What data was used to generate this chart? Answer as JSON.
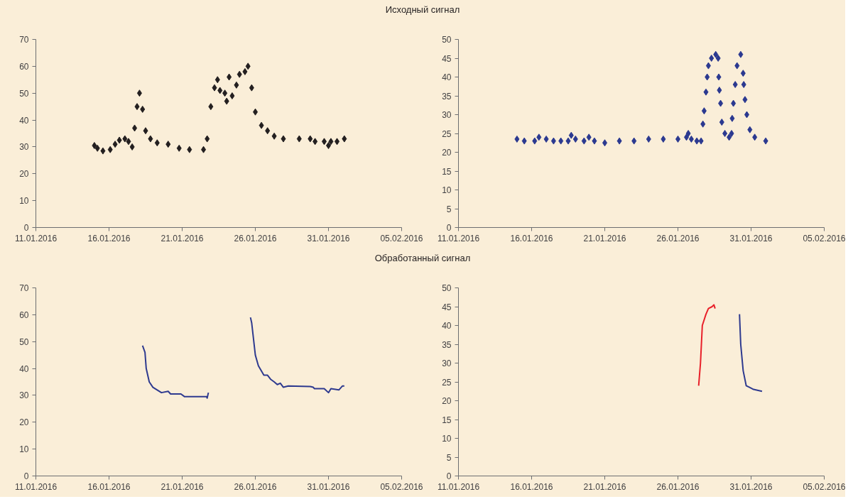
{
  "chart_data": [
    {
      "type": "scatter",
      "title": "Исходный сигнал",
      "marker": "diamond",
      "xlim": [
        "2016-01-11",
        "2016-02-05"
      ],
      "ylim": [
        0,
        70
      ],
      "yticks": [
        0,
        10,
        20,
        30,
        40,
        50,
        60,
        70
      ],
      "xticks": [
        {
          "value": "2016-01-11",
          "label": "11.01.2016"
        },
        {
          "value": "2016-01-16",
          "label": "16.01.2016"
        },
        {
          "value": "2016-01-21",
          "label": "21.01.2016"
        },
        {
          "value": "2016-01-26",
          "label": "26.01.2016"
        },
        {
          "value": "2016-01-31",
          "label": "31.01.2016"
        },
        {
          "value": "2016-02-05",
          "label": "05.02.2016"
        }
      ],
      "series": [
        {
          "color": "#231f20",
          "x": [
            "2016-01-15T00:00",
            "2016-01-15T05:00",
            "2016-01-15T14:00",
            "2016-01-16T02:00",
            "2016-01-16T10:00",
            "2016-01-16T17:00",
            "2016-01-17T02:00",
            "2016-01-17T08:00",
            "2016-01-17T14:00",
            "2016-01-17T18:00",
            "2016-01-17T22:00",
            "2016-01-18T02:00",
            "2016-01-18T07:00",
            "2016-01-18T12:00",
            "2016-01-18T20:00",
            "2016-01-19T07:00",
            "2016-01-20T01:00",
            "2016-01-20T19:00",
            "2016-01-21T12:00",
            "2016-01-22T11:00",
            "2016-01-22T17:00",
            "2016-01-22T23:00",
            "2016-01-23T05:00",
            "2016-01-23T10:00",
            "2016-01-23T14:00",
            "2016-01-23T22:00",
            "2016-01-24T01:00",
            "2016-01-24T05:00",
            "2016-01-24T10:00",
            "2016-01-24T17:00",
            "2016-01-24T22:00",
            "2016-01-25T07:00",
            "2016-01-25T12:00",
            "2016-01-25T18:00",
            "2016-01-26T00:00",
            "2016-01-26T10:00",
            "2016-01-26T20:00",
            "2016-01-27T07:00",
            "2016-01-27T22:00",
            "2016-01-29T00:00",
            "2016-01-29T18:00",
            "2016-01-30T02:00",
            "2016-01-30T17:00",
            "2016-01-31T00:00",
            "2016-01-31T04:00",
            "2016-01-31T14:00",
            "2016-02-01T02:00"
          ],
          "values": [
            30.5,
            29.5,
            28.5,
            29,
            31,
            32.5,
            33,
            32,
            30,
            37,
            45,
            50,
            44,
            36,
            33,
            31.5,
            31,
            29.5,
            29,
            29,
            33,
            45,
            52,
            55,
            51,
            50,
            47,
            56,
            49,
            53,
            57,
            58,
            60,
            52,
            43,
            38,
            36,
            34,
            33,
            33,
            33,
            32,
            32,
            30.5,
            32,
            32,
            33
          ]
        }
      ]
    },
    {
      "type": "scatter",
      "marker": "diamond",
      "xlim": [
        "2016-01-11",
        "2016-02-05"
      ],
      "ylim": [
        0,
        50
      ],
      "yticks": [
        0,
        5,
        10,
        15,
        20,
        25,
        30,
        35,
        40,
        45,
        50
      ],
      "xticks": [
        {
          "value": "2016-01-11",
          "label": "11.01.2016"
        },
        {
          "value": "2016-01-16",
          "label": "16.01.2016"
        },
        {
          "value": "2016-01-21",
          "label": "21.01.2016"
        },
        {
          "value": "2016-01-26",
          "label": "26.01.2016"
        },
        {
          "value": "2016-01-31",
          "label": "31.01.2016"
        },
        {
          "value": "2016-02-05",
          "label": "05.02.2016"
        }
      ],
      "series": [
        {
          "color": "#2b3990",
          "x": [
            "2016-01-15T00:00",
            "2016-01-15T12:00",
            "2016-01-16T05:00",
            "2016-01-16T12:00",
            "2016-01-17T00:00",
            "2016-01-17T12:00",
            "2016-01-18T00:00",
            "2016-01-18T12:00",
            "2016-01-18T17:00",
            "2016-01-19T00:00",
            "2016-01-19T14:00",
            "2016-01-19T22:00",
            "2016-01-20T07:00",
            "2016-01-21T00:00",
            "2016-01-22T00:00",
            "2016-01-23T00:00",
            "2016-01-24T00:00",
            "2016-01-25T00:00",
            "2016-01-26T00:00",
            "2016-01-26T14:00",
            "2016-01-26T17:00",
            "2016-01-26T22:00",
            "2016-01-27T07:00",
            "2016-01-27T14:00",
            "2016-01-27T17:00",
            "2016-01-27T19:00",
            "2016-01-27T22:00",
            "2016-01-28T00:00",
            "2016-01-28T02:00",
            "2016-01-28T07:00",
            "2016-01-28T14:00",
            "2016-01-28T18:00",
            "2016-01-28T19:00",
            "2016-01-28T20:00",
            "2016-01-28T22:00",
            "2016-01-29T00:00",
            "2016-01-29T05:00",
            "2016-01-29T12:00",
            "2016-01-29T16:00",
            "2016-01-29T17:00",
            "2016-01-29T19:00",
            "2016-01-29T22:00",
            "2016-01-30T01:00",
            "2016-01-30T07:00",
            "2016-01-30T11:00",
            "2016-01-30T12:00",
            "2016-01-30T14:00",
            "2016-01-30T17:00",
            "2016-01-30T22:00",
            "2016-01-31T06:00",
            "2016-02-01T00:00"
          ],
          "values": [
            23.5,
            23,
            23,
            24,
            23.5,
            23,
            23,
            23,
            24.5,
            23.5,
            23,
            24,
            23,
            22.5,
            23,
            23,
            23.5,
            23.5,
            23.5,
            24,
            25,
            23.5,
            23,
            23,
            27.5,
            31,
            36,
            40,
            43,
            45,
            46,
            45,
            40,
            36.5,
            33,
            28,
            25,
            24,
            25,
            29,
            33,
            38,
            43,
            46,
            41,
            38,
            34,
            30,
            26,
            24,
            23
          ]
        }
      ]
    },
    {
      "type": "line",
      "title": "Обработанный сигнал",
      "xlim": [
        "2016-01-11",
        "2016-02-05"
      ],
      "ylim": [
        0,
        70
      ],
      "yticks": [
        0,
        10,
        20,
        30,
        40,
        50,
        60,
        70
      ],
      "xticks": [
        {
          "value": "2016-01-11",
          "label": "11.01.2016"
        },
        {
          "value": "2016-01-16",
          "label": "16.01.2016"
        },
        {
          "value": "2016-01-21",
          "label": "21.01.2016"
        },
        {
          "value": "2016-01-26",
          "label": "26.01.2016"
        },
        {
          "value": "2016-01-31",
          "label": "31.01.2016"
        },
        {
          "value": "2016-02-05",
          "label": "05.02.2016"
        }
      ],
      "series": [
        {
          "color": "#2e3a8f",
          "x": [
            "2016-01-18T07:00",
            "2016-01-18T11:00",
            "2016-01-18T13:00",
            "2016-01-18T18:00",
            "2016-01-19T00:00",
            "2016-01-19T07:00",
            "2016-01-19T14:00",
            "2016-01-20T01:00",
            "2016-01-20T05:00",
            "2016-01-20T22:00",
            "2016-01-21T04:00",
            "2016-01-22T16:00",
            "2016-01-22T17:00",
            "2016-01-22T19:00",
            "2016-01-24T06:00",
            "2016-01-25T16:00",
            "2016-01-25T18:00",
            "2016-01-26T00:00",
            "2016-01-26T05:00",
            "2016-01-26T14:00",
            "2016-01-26T20:00",
            "2016-01-27T01:00",
            "2016-01-27T07:00",
            "2016-01-27T12:00",
            "2016-01-27T17:00",
            "2016-01-27T22:00",
            "2016-01-28T06:00",
            "2016-01-29T18:00",
            "2016-01-29T23:00",
            "2016-01-30T01:00",
            "2016-01-30T17:00",
            "2016-01-31T00:00",
            "2016-01-31T04:00",
            "2016-01-31T17:00",
            "2016-01-31T23:00",
            "2016-02-01T02:00"
          ],
          "values": [
            48.5,
            46,
            40,
            35,
            33,
            32,
            31,
            31.5,
            30.5,
            30.5,
            29.5,
            29.5,
            29,
            31,
            null,
            59,
            57,
            45,
            41,
            37.5,
            37.5,
            36,
            35,
            34,
            34.5,
            33,
            33.5,
            33.3,
            33,
            32.5,
            32.5,
            31,
            32.5,
            32,
            33.5,
            33.5
          ]
        }
      ]
    },
    {
      "type": "line",
      "xlim": [
        "2016-01-11",
        "2016-02-05"
      ],
      "ylim": [
        0,
        50
      ],
      "yticks": [
        0,
        5,
        10,
        15,
        20,
        25,
        30,
        35,
        40,
        45,
        50
      ],
      "xticks": [
        {
          "value": "2016-01-11",
          "label": "11.01.2016"
        },
        {
          "value": "2016-01-16",
          "label": "16.01.2016"
        },
        {
          "value": "2016-01-21",
          "label": "21.01.2016"
        },
        {
          "value": "2016-01-26",
          "label": "26.01.2016"
        },
        {
          "value": "2016-01-31",
          "label": "31.01.2016"
        },
        {
          "value": "2016-02-05",
          "label": "05.02.2016"
        }
      ],
      "series": [
        {
          "color": "#e8202a",
          "x": [
            "2016-01-27T10:00",
            "2016-01-27T13:00",
            "2016-01-27T16:00",
            "2016-01-27T22:00",
            "2016-01-28T02:00",
            "2016-01-28T08:00",
            "2016-01-28T11:00",
            "2016-01-28T13:00"
          ],
          "values": [
            24,
            30,
            40,
            43,
            44.5,
            45,
            45.5,
            44.5
          ]
        },
        {
          "color": "#2e3a8f",
          "x": [
            "2016-01-30T05:00",
            "2016-01-30T07:00",
            "2016-01-30T11:00",
            "2016-01-30T16:00",
            "2016-01-30T22:00",
            "2016-01-31T04:00",
            "2016-01-31T18:00"
          ],
          "values": [
            43,
            35,
            28,
            24,
            23.5,
            23,
            22.5
          ]
        }
      ]
    }
  ]
}
